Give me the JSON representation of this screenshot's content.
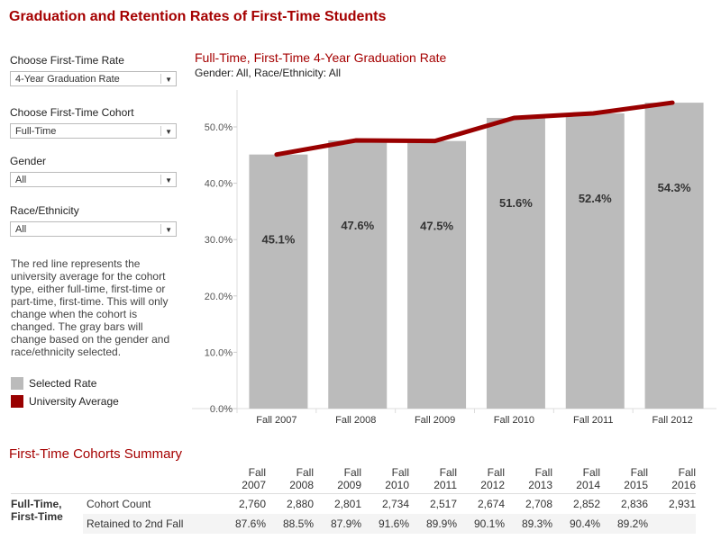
{
  "title": "Graduation and Retention Rates of First-Time Students",
  "filters": [
    {
      "label": "Choose First-Time Rate",
      "value": "4-Year Graduation Rate"
    },
    {
      "label": "Choose First-Time Cohort",
      "value": "Full-Time"
    },
    {
      "label": "Gender",
      "value": "All"
    },
    {
      "label": "Race/Ethnicity",
      "value": "All"
    }
  ],
  "note": "The red line represents the university average for the cohort type, either full-time, first-time or part-time, first-time. This will only change when the cohort is changed. The gray bars will change based on the gender and race/ethnicity selected.",
  "legend": [
    {
      "label": "Selected Rate",
      "color": "#bbbbbb"
    },
    {
      "label": "University Average",
      "color": "#990000"
    }
  ],
  "chart_data": {
    "type": "bar",
    "title": "Full-Time, First-Time 4-Year Graduation Rate",
    "subtitle": "Gender: All, Race/Ethnicity: All",
    "categories": [
      "Fall 2007",
      "Fall 2008",
      "Fall 2009",
      "Fall 2010",
      "Fall 2011",
      "Fall 2012"
    ],
    "series": [
      {
        "name": "Selected Rate",
        "type": "bar",
        "values": [
          45.1,
          47.6,
          47.5,
          51.6,
          52.4,
          54.3
        ],
        "labels": [
          "45.1%",
          "47.6%",
          "47.5%",
          "51.6%",
          "52.4%",
          "54.3%"
        ],
        "color": "#bbbbbb"
      },
      {
        "name": "University Average",
        "type": "line",
        "values": [
          45.1,
          47.6,
          47.5,
          51.6,
          52.4,
          54.3
        ],
        "color": "#990000"
      }
    ],
    "yticks": [
      "0.0%",
      "10.0%",
      "20.0%",
      "30.0%",
      "40.0%",
      "50.0%"
    ],
    "ylim": [
      0,
      55
    ],
    "grid": false
  },
  "summary": {
    "title": "First-Time Cohorts Summary",
    "years": [
      [
        "Fall",
        "2007"
      ],
      [
        "Fall",
        "2008"
      ],
      [
        "Fall",
        "2009"
      ],
      [
        "Fall",
        "2010"
      ],
      [
        "Fall",
        "2011"
      ],
      [
        "Fall",
        "2012"
      ],
      [
        "Fall",
        "2013"
      ],
      [
        "Fall",
        "2014"
      ],
      [
        "Fall",
        "2015"
      ],
      [
        "Fall",
        "2016"
      ]
    ],
    "group": "Full-Time, First-Time",
    "rows": [
      {
        "label": "Cohort Count",
        "values": [
          "2,760",
          "2,880",
          "2,801",
          "2,734",
          "2,517",
          "2,674",
          "2,708",
          "2,852",
          "2,836",
          "2,931"
        ]
      },
      {
        "label": "Retained to 2nd Fall",
        "values": [
          "87.6%",
          "88.5%",
          "87.9%",
          "91.6%",
          "89.9%",
          "90.1%",
          "89.3%",
          "90.4%",
          "89.2%",
          ""
        ]
      }
    ]
  }
}
